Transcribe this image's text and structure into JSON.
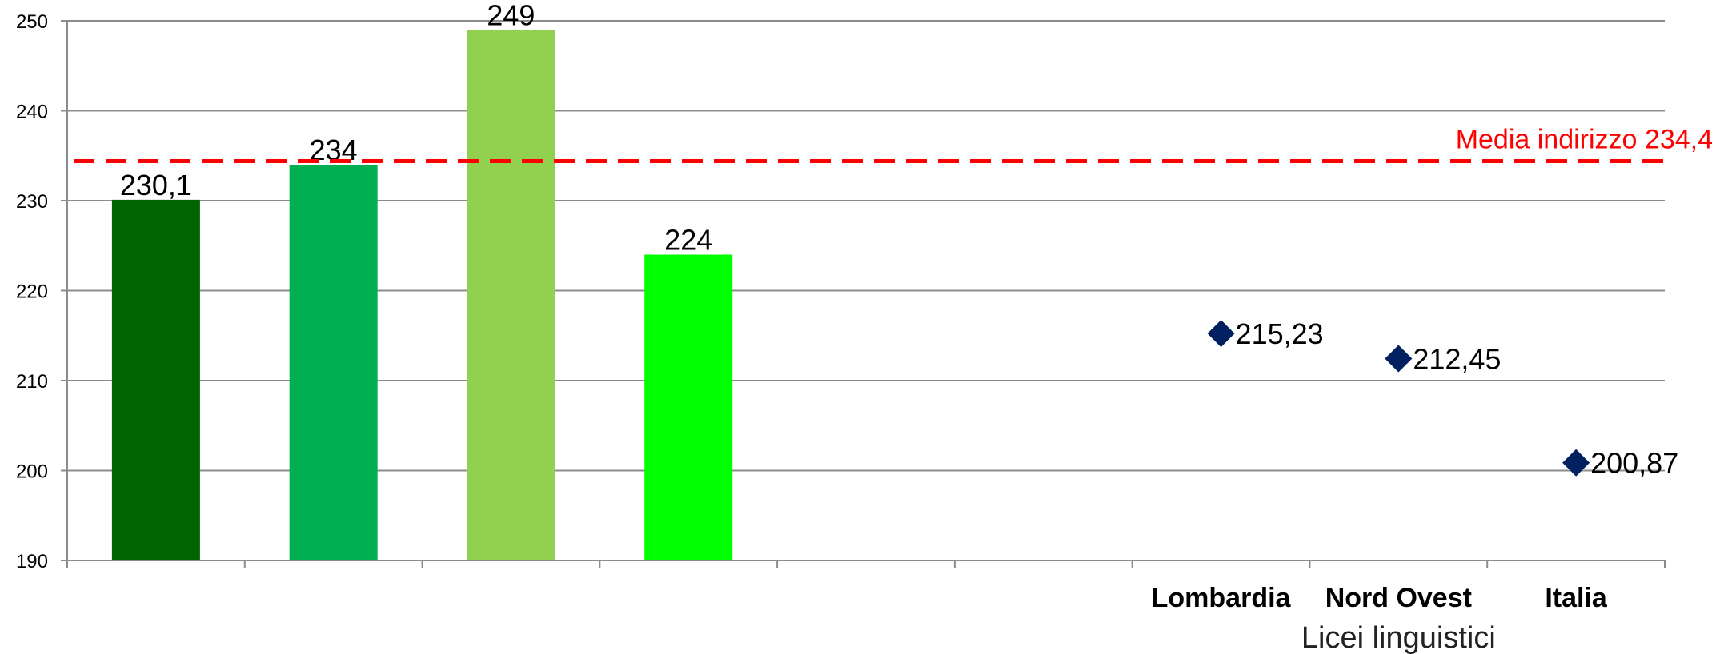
{
  "chart_data": {
    "type": "bar",
    "categories": [
      "",
      "",
      "",
      "",
      "",
      "",
      "Lombardia",
      "Nord Ovest",
      "Italia"
    ],
    "bars": [
      {
        "category_index": 0,
        "value": 230.1,
        "label": "230,1",
        "color": "#006400"
      },
      {
        "category_index": 1,
        "value": 234,
        "label": "234",
        "color": "#00b050"
      },
      {
        "category_index": 2,
        "value": 249,
        "label": "249",
        "color": "#92d050"
      },
      {
        "category_index": 3,
        "value": 224,
        "label": "224",
        "color": "#00ff00"
      }
    ],
    "points": [
      {
        "category_index": 6,
        "value": 215.23,
        "label": "215,23"
      },
      {
        "category_index": 7,
        "value": 212.45,
        "label": "212,45"
      },
      {
        "category_index": 8,
        "value": 200.87,
        "label": "200,87"
      }
    ],
    "point_color": "#002060",
    "reference_line": {
      "value": 234.4,
      "label": "Media indirizzo 234,4",
      "color": "#ff0000"
    },
    "xlabel": "Licei linguistici",
    "ylabel": "",
    "ylim": [
      190,
      250
    ],
    "yticks": [
      190,
      200,
      210,
      220,
      230,
      240,
      250
    ],
    "grid": true
  }
}
